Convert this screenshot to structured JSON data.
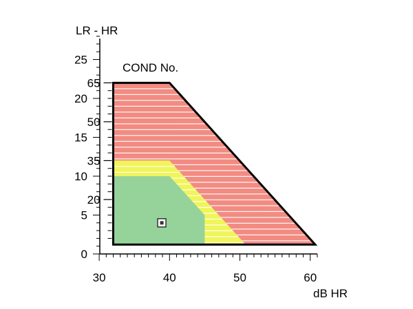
{
  "chart_data": {
    "type": "area",
    "title": "",
    "ylabel": "LR - HR",
    "xlabel": "dB HR",
    "secondary_ylabel": "COND No.",
    "xlim": [
      25,
      61
    ],
    "ylim": [
      0,
      28
    ],
    "x_ticks": [
      30,
      40,
      50,
      60
    ],
    "y_ticks": [
      0,
      5,
      10,
      15,
      20,
      25
    ],
    "cond_ticks": [
      {
        "label": "65",
        "y": 22
      },
      {
        "label": "50",
        "y": 17
      },
      {
        "label": "35",
        "y": 12
      },
      {
        "label": "20",
        "y": 7
      }
    ],
    "zones": [
      {
        "name": "red",
        "color": "#f28b82",
        "stripes": true,
        "polygon": [
          [
            32,
            22
          ],
          [
            40,
            22
          ],
          [
            60.7,
            1.2
          ],
          [
            32,
            1.2
          ]
        ]
      },
      {
        "name": "yellow",
        "color": "#f0f55a",
        "stripes": true,
        "polygon": [
          [
            32,
            12
          ],
          [
            40,
            12
          ],
          [
            50.8,
            1.2
          ],
          [
            32,
            1.2
          ]
        ]
      },
      {
        "name": "green",
        "color": "#96d39a",
        "stripes": false,
        "polygon": [
          [
            32,
            10
          ],
          [
            40,
            10
          ],
          [
            45,
            5
          ],
          [
            45,
            1.2
          ],
          [
            32,
            1.2
          ]
        ]
      }
    ],
    "points": [
      {
        "x": 38.9,
        "y": 4
      }
    ],
    "colors": {
      "outline": "#000000",
      "stripe": "#ffffff"
    }
  }
}
